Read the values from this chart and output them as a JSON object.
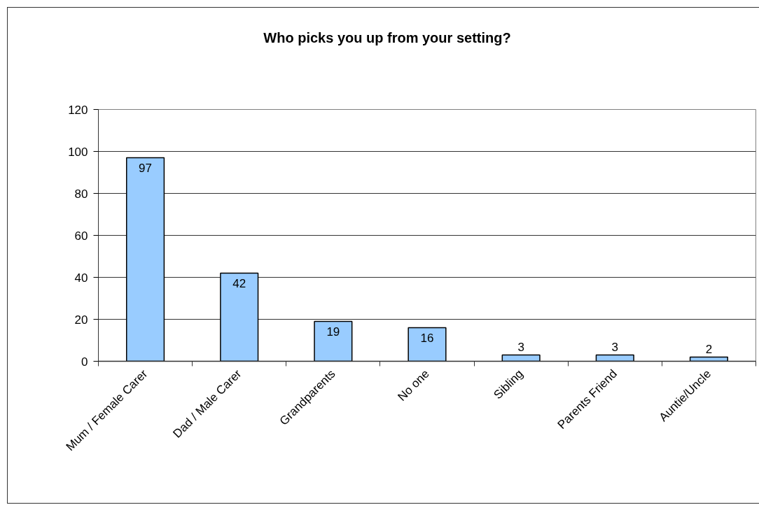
{
  "chart_data": {
    "type": "bar",
    "title": "Who picks you up from your setting?",
    "categories": [
      "Mum / Female Carer",
      "Dad / Male Carer",
      "Grandparents",
      "No one",
      "Sibling",
      "Parents Friend",
      "Auntie/Uncle"
    ],
    "values": [
      97,
      42,
      19,
      16,
      3,
      3,
      2
    ],
    "color": "#99ccff",
    "ylim": [
      0,
      120
    ],
    "yticks": [
      0,
      20,
      40,
      60,
      80,
      100,
      120
    ],
    "grid": "y",
    "data_labels": true
  }
}
